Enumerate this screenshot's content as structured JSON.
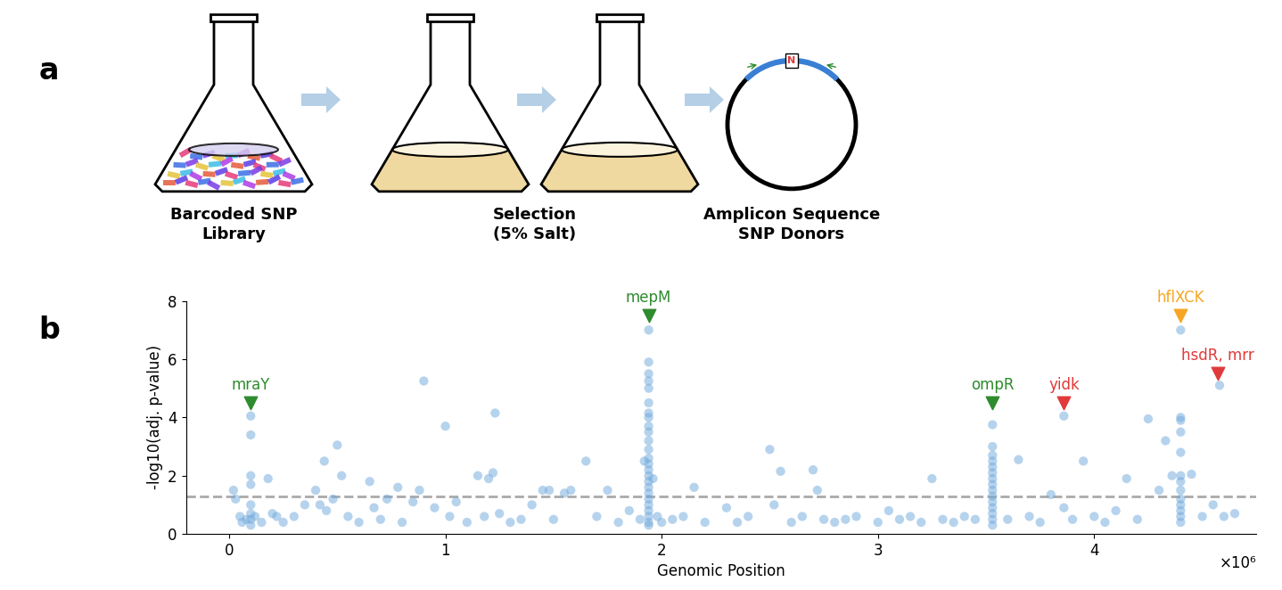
{
  "diagram": {
    "panel_label": "a",
    "steps": [
      {
        "label": "Barcoded SNP\nLibrary"
      },
      {
        "label": "Selection\n(5% Salt)"
      },
      {
        "label": "Amplicon Sequence\nSNP Donors"
      }
    ],
    "insert_label": "N"
  },
  "chart_data": {
    "type": "scatter",
    "panel_label": "b",
    "xlabel": "Genomic Position",
    "ylabel": "-log10(adj. p-value)",
    "offset_text": "×10⁶",
    "color": "#6fa8dc",
    "marker": "o",
    "grid": false,
    "threshold": 1.3,
    "xlim": [
      -0.2,
      4.75
    ],
    "xticks": [
      0,
      1,
      2,
      3,
      4
    ],
    "ylim": [
      0,
      8
    ],
    "yticks": [
      0,
      2,
      4,
      6,
      8
    ],
    "x": [
      0.02,
      0.03,
      0.05,
      0.06,
      0.08,
      0.1,
      0.1,
      0.1,
      0.1,
      0.1,
      0.1,
      0.1,
      0.1,
      0.12,
      0.15,
      0.18,
      0.2,
      0.22,
      0.25,
      0.3,
      0.35,
      0.4,
      0.42,
      0.44,
      0.45,
      0.48,
      0.5,
      0.52,
      0.55,
      0.6,
      0.65,
      0.67,
      0.7,
      0.73,
      0.78,
      0.8,
      0.85,
      0.88,
      0.9,
      0.95,
      1.0,
      1.02,
      1.05,
      1.1,
      1.15,
      1.18,
      1.2,
      1.22,
      1.23,
      1.25,
      1.3,
      1.35,
      1.4,
      1.45,
      1.48,
      1.5,
      1.55,
      1.58,
      1.65,
      1.7,
      1.75,
      1.8,
      1.85,
      1.9,
      1.94,
      1.94,
      1.94,
      1.94,
      1.94,
      1.94,
      1.94,
      1.94,
      1.94,
      1.94,
      1.94,
      1.94,
      1.94,
      1.94,
      1.94,
      1.94,
      1.94,
      1.94,
      1.94,
      1.94,
      1.94,
      1.94,
      1.94,
      1.94,
      1.94,
      1.92,
      1.96,
      1.98,
      2.0,
      2.05,
      2.1,
      2.15,
      2.2,
      2.3,
      2.35,
      2.4,
      2.5,
      2.52,
      2.55,
      2.6,
      2.65,
      2.7,
      2.72,
      2.75,
      2.8,
      2.85,
      2.9,
      3.0,
      3.05,
      3.1,
      3.15,
      3.2,
      3.25,
      3.3,
      3.35,
      3.4,
      3.45,
      3.53,
      3.53,
      3.53,
      3.53,
      3.53,
      3.53,
      3.53,
      3.53,
      3.53,
      3.53,
      3.53,
      3.53,
      3.53,
      3.53,
      3.53,
      3.6,
      3.65,
      3.7,
      3.75,
      3.8,
      3.86,
      3.86,
      3.9,
      3.95,
      4.0,
      4.05,
      4.1,
      4.15,
      4.2,
      4.25,
      4.3,
      4.33,
      4.36,
      4.4,
      4.4,
      4.4,
      4.4,
      4.4,
      4.4,
      4.4,
      4.4,
      4.4,
      4.4,
      4.4,
      4.4,
      4.4,
      4.45,
      4.5,
      4.55,
      4.58,
      4.6,
      4.65
    ],
    "values": [
      1.5,
      1.2,
      0.6,
      0.4,
      0.5,
      4.05,
      3.4,
      2.0,
      1.7,
      1.0,
      0.7,
      0.5,
      0.3,
      0.6,
      0.4,
      1.9,
      0.7,
      0.6,
      0.4,
      0.6,
      1.0,
      1.5,
      1.0,
      2.5,
      0.8,
      1.2,
      3.05,
      2.0,
      0.6,
      0.4,
      1.8,
      0.9,
      0.5,
      1.2,
      1.6,
      0.4,
      1.1,
      1.5,
      5.25,
      0.9,
      3.7,
      0.6,
      1.1,
      0.4,
      2.0,
      0.6,
      1.9,
      2.1,
      4.15,
      0.7,
      0.4,
      0.5,
      1.0,
      1.5,
      1.5,
      0.5,
      1.4,
      1.5,
      2.5,
      0.6,
      1.5,
      0.4,
      0.8,
      0.5,
      7.0,
      5.9,
      5.5,
      5.25,
      5.0,
      4.5,
      4.15,
      4.0,
      3.7,
      3.5,
      3.2,
      2.9,
      2.6,
      2.4,
      2.2,
      2.0,
      1.8,
      1.6,
      1.4,
      1.2,
      1.0,
      0.8,
      0.6,
      0.4,
      0.3,
      2.5,
      1.9,
      0.6,
      0.4,
      0.5,
      0.6,
      1.6,
      0.4,
      0.9,
      0.4,
      0.6,
      2.9,
      1.0,
      2.15,
      0.4,
      0.6,
      2.2,
      1.5,
      0.5,
      0.4,
      0.5,
      0.6,
      0.4,
      0.8,
      0.5,
      0.6,
      0.4,
      1.9,
      0.5,
      0.4,
      0.6,
      0.5,
      3.75,
      3.0,
      2.7,
      2.5,
      2.3,
      2.1,
      1.9,
      1.7,
      1.5,
      1.3,
      1.1,
      0.9,
      0.7,
      0.5,
      0.3,
      0.5,
      2.55,
      0.6,
      0.4,
      1.35,
      4.05,
      0.9,
      0.5,
      2.5,
      0.6,
      0.4,
      0.8,
      1.9,
      0.5,
      3.95,
      1.5,
      3.2,
      2.0,
      7.0,
      4.0,
      3.9,
      3.5,
      2.8,
      2.0,
      1.8,
      1.5,
      1.2,
      1.0,
      0.8,
      0.6,
      0.4,
      2.05,
      0.6,
      1.0,
      5.1,
      0.6,
      0.7
    ],
    "gene_labels": [
      {
        "text": "mraY",
        "x": 0.1,
        "y": 4.5,
        "color": "#2e8b2e"
      },
      {
        "text": "mepM",
        "x": 1.94,
        "y": 7.5,
        "color": "#2e8b2e"
      },
      {
        "text": "ompR",
        "x": 3.53,
        "y": 4.5,
        "color": "#2e8b2e"
      },
      {
        "text": "yidk",
        "x": 3.86,
        "y": 4.5,
        "color": "#e03a3a"
      },
      {
        "text": "hflXCK",
        "x": 4.4,
        "y": 7.5,
        "color": "#f5a623"
      },
      {
        "text": "hsdR, mrr",
        "x": 4.57,
        "y": 5.5,
        "color": "#e03a3a"
      }
    ]
  }
}
